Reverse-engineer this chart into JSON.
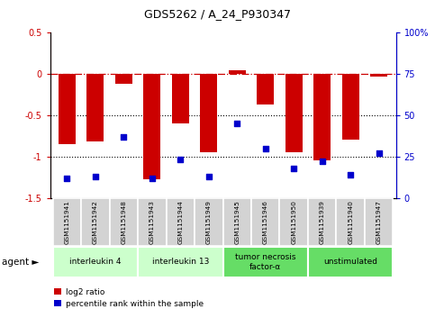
{
  "title": "GDS5262 / A_24_P930347",
  "samples": [
    "GSM1151941",
    "GSM1151942",
    "GSM1151948",
    "GSM1151943",
    "GSM1151944",
    "GSM1151949",
    "GSM1151945",
    "GSM1151946",
    "GSM1151950",
    "GSM1151939",
    "GSM1151940",
    "GSM1151947"
  ],
  "log2_ratio": [
    -0.85,
    -0.82,
    -0.12,
    -1.28,
    -0.6,
    -0.95,
    0.04,
    -0.37,
    -0.95,
    -1.05,
    -0.8,
    -0.03
  ],
  "percentile_rank": [
    12,
    13,
    37,
    12,
    23,
    13,
    45,
    30,
    18,
    22,
    14,
    27
  ],
  "agents": [
    {
      "label": "interleukin 4",
      "start": 0,
      "end": 3,
      "color": "#ccffcc"
    },
    {
      "label": "interleukin 13",
      "start": 3,
      "end": 6,
      "color": "#ccffcc"
    },
    {
      "label": "tumor necrosis\nfactor-α",
      "start": 6,
      "end": 9,
      "color": "#66dd66"
    },
    {
      "label": "unstimulated",
      "start": 9,
      "end": 12,
      "color": "#66dd66"
    }
  ],
  "bar_color": "#cc0000",
  "dot_color": "#0000cc",
  "ylim_left": [
    -1.5,
    0.5
  ],
  "ylim_right": [
    0,
    100
  ],
  "yticks_left": [
    -1.5,
    -1.0,
    -0.5,
    0.0,
    0.5
  ],
  "yticks_right": [
    0,
    25,
    50,
    75,
    100
  ],
  "hline_y": 0,
  "dotted_lines": [
    -0.5,
    -1.0
  ],
  "legend_items": [
    {
      "label": "log2 ratio",
      "color": "#cc0000"
    },
    {
      "label": "percentile rank within the sample",
      "color": "#0000cc"
    }
  ],
  "agent_label": "agent ►",
  "sample_box_color": "#d3d3d3",
  "bar_width": 0.6
}
